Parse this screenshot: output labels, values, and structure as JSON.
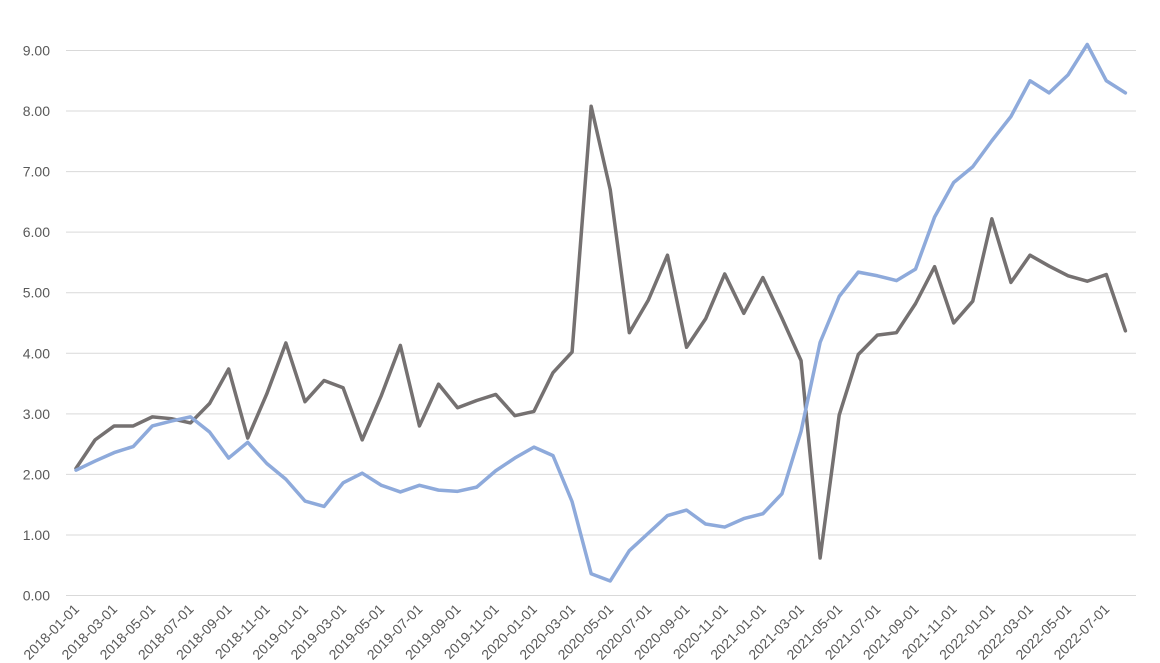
{
  "chart_data": {
    "type": "line",
    "title": "",
    "xlabel": "",
    "ylabel": "",
    "ylim": [
      0,
      9
    ],
    "y_ticks": [
      "0.00",
      "1.00",
      "2.00",
      "3.00",
      "4.00",
      "5.00",
      "6.00",
      "7.00",
      "8.00",
      "9.00"
    ],
    "grid": true,
    "x": [
      "2018-01-01",
      "2018-02-01",
      "2018-03-01",
      "2018-04-01",
      "2018-05-01",
      "2018-06-01",
      "2018-07-01",
      "2018-08-01",
      "2018-09-01",
      "2018-10-01",
      "2018-11-01",
      "2018-12-01",
      "2019-01-01",
      "2019-02-01",
      "2019-03-01",
      "2019-04-01",
      "2019-05-01",
      "2019-06-01",
      "2019-07-01",
      "2019-08-01",
      "2019-09-01",
      "2019-10-01",
      "2019-11-01",
      "2019-12-01",
      "2020-01-01",
      "2020-02-01",
      "2020-03-01",
      "2020-04-01",
      "2020-05-01",
      "2020-06-01",
      "2020-07-01",
      "2020-08-01",
      "2020-09-01",
      "2020-10-01",
      "2020-11-01",
      "2020-12-01",
      "2021-01-01",
      "2021-02-01",
      "2021-03-01",
      "2021-04-01",
      "2021-05-01",
      "2021-06-01",
      "2021-07-01",
      "2021-08-01",
      "2021-09-01",
      "2021-10-01",
      "2021-11-01",
      "2021-12-01",
      "2022-01-01",
      "2022-02-01",
      "2022-03-01",
      "2022-04-01",
      "2022-05-01",
      "2022-06-01",
      "2022-07-01",
      "2022-08-01"
    ],
    "x_tick_labels": [
      "2018-01-01",
      "2018-03-01",
      "2018-05-01",
      "2018-07-01",
      "2018-09-01",
      "2018-11-01",
      "2019-01-01",
      "2019-03-01",
      "2019-05-01",
      "2019-07-01",
      "2019-09-01",
      "2019-11-01",
      "2020-01-01",
      "2020-03-01",
      "2020-05-01",
      "2020-07-01",
      "2020-09-01",
      "2020-11-01",
      "2021-01-01",
      "2021-03-01",
      "2021-05-01",
      "2021-07-01",
      "2021-09-01",
      "2021-11-01",
      "2022-01-01",
      "2022-03-01",
      "2022-05-01",
      "2022-07-01"
    ],
    "series": [
      {
        "color": "#757171",
        "values": [
          2.1,
          2.57,
          2.8,
          2.8,
          2.95,
          2.92,
          2.85,
          3.17,
          3.74,
          2.6,
          3.33,
          4.17,
          3.2,
          3.55,
          3.43,
          2.57,
          3.3,
          4.13,
          2.8,
          3.49,
          3.1,
          3.22,
          3.32,
          2.97,
          3.04,
          3.68,
          4.02,
          8.08,
          6.7,
          4.34,
          4.88,
          5.62,
          4.1,
          4.57,
          5.31,
          4.66,
          5.25,
          4.58,
          3.88,
          0.62,
          2.98,
          3.98,
          4.3,
          4.34,
          4.82,
          5.43,
          4.5,
          4.86,
          6.22,
          5.17,
          5.62,
          5.44,
          5.28,
          5.19,
          5.3,
          4.37
        ]
      },
      {
        "color": "#8eaadb",
        "values": [
          2.07,
          2.22,
          2.36,
          2.46,
          2.8,
          2.88,
          2.95,
          2.7,
          2.27,
          2.53,
          2.18,
          1.92,
          1.56,
          1.47,
          1.86,
          2.02,
          1.82,
          1.71,
          1.82,
          1.74,
          1.72,
          1.79,
          2.06,
          2.27,
          2.45,
          2.31,
          1.55,
          0.36,
          0.24,
          0.74,
          1.03,
          1.32,
          1.41,
          1.18,
          1.13,
          1.27,
          1.35,
          1.68,
          2.71,
          4.18,
          4.94,
          5.34,
          5.28,
          5.2,
          5.39,
          6.25,
          6.82,
          7.08,
          7.51,
          7.91,
          8.5,
          8.3,
          8.6,
          9.1,
          8.5,
          8.3
        ]
      }
    ]
  }
}
